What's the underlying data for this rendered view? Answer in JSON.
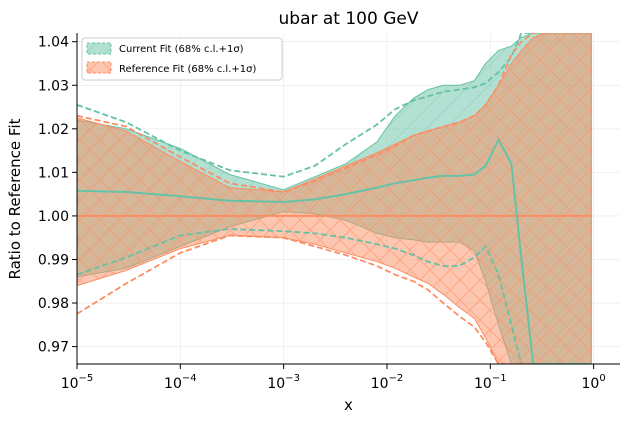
{
  "chart_data": {
    "type": "area",
    "title": "ubar at 100 GeV",
    "xlabel": "x",
    "ylabel": "Ratio to Reference Fit",
    "xscale": "log",
    "xlim": [
      1e-05,
      1.8
    ],
    "ylim": [
      0.966,
      1.042
    ],
    "x_ticks": [
      {
        "value": 1e-05,
        "base": "10",
        "exp": "−5"
      },
      {
        "value": 0.0001,
        "base": "10",
        "exp": "−4"
      },
      {
        "value": 0.001,
        "base": "10",
        "exp": "−3"
      },
      {
        "value": 0.01,
        "base": "10",
        "exp": "−2"
      },
      {
        "value": 0.1,
        "base": "10",
        "exp": "−1"
      },
      {
        "value": 1,
        "base": "10",
        "exp": "0"
      }
    ],
    "y_ticks": [
      0.97,
      0.98,
      0.99,
      1.0,
      1.01,
      1.02,
      1.03,
      1.04
    ],
    "y_tick_labels": [
      "0.97",
      "0.98",
      "0.99",
      "1.00",
      "1.01",
      "1.02",
      "1.03",
      "1.04"
    ],
    "grid": true,
    "legend_position": "top-left",
    "series": [
      {
        "name": "Current Fit (68% c.l.+1σ)",
        "color": "#66c2a5",
        "x": [
          1e-05,
          3e-05,
          0.0001,
          0.0003,
          0.001,
          0.002,
          0.004,
          0.008,
          0.012,
          0.018,
          0.025,
          0.035,
          0.05,
          0.07,
          0.09,
          0.12,
          0.16,
          0.2,
          0.26,
          0.35,
          0.5,
          0.7,
          0.85,
          0.95
        ],
        "band_upper": [
          1.022,
          1.02,
          1.0155,
          1.0095,
          1.006,
          1.009,
          1.012,
          1.017,
          1.023,
          1.027,
          1.029,
          1.03,
          1.03,
          1.031,
          1.035,
          1.038,
          1.039,
          1.041,
          1.042,
          1.042,
          1.042,
          1.042,
          1.042,
          1.042
        ],
        "band_lower": [
          0.986,
          0.988,
          0.993,
          0.9975,
          1.001,
          1.0005,
          0.999,
          0.996,
          0.995,
          0.9945,
          0.994,
          0.994,
          0.994,
          0.992,
          0.985,
          0.975,
          0.966,
          0.966,
          0.966,
          0.966,
          0.966,
          0.966,
          0.966,
          0.966
        ],
        "central": [
          1.0058,
          1.0055,
          1.0045,
          1.0035,
          1.0032,
          1.0038,
          1.005,
          1.0065,
          1.0075,
          1.0082,
          1.0088,
          1.0092,
          1.0092,
          1.0095,
          1.0115,
          1.0175,
          1.012,
          0.99,
          0.966,
          0.966,
          0.966,
          0.966,
          0.966,
          0.966
        ],
        "dashed_upper": [
          1.0255,
          1.0215,
          1.015,
          1.0105,
          1.009,
          1.0115,
          1.0165,
          1.021,
          1.0245,
          1.0265,
          1.0275,
          1.0285,
          1.029,
          1.0295,
          1.0305,
          1.033,
          1.0365,
          1.042,
          1.042,
          1.042,
          1.042,
          1.042,
          1.042,
          1.042
        ],
        "dashed_lower": [
          0.9865,
          0.9905,
          0.9955,
          0.997,
          0.9965,
          0.996,
          0.995,
          0.9935,
          0.9925,
          0.991,
          0.9895,
          0.9885,
          0.9885,
          0.9905,
          0.993,
          0.9865,
          0.975,
          0.966,
          0.966,
          0.966,
          0.966,
          0.966,
          0.966,
          0.966
        ]
      },
      {
        "name": "Reference Fit (68% c.l.+1σ)",
        "color": "#fc8d62",
        "x": [
          1e-05,
          3e-05,
          0.0001,
          0.0003,
          0.001,
          0.002,
          0.004,
          0.008,
          0.012,
          0.018,
          0.025,
          0.035,
          0.05,
          0.07,
          0.09,
          0.12,
          0.16,
          0.2,
          0.26,
          0.35,
          0.5,
          0.7,
          0.85,
          0.95
        ],
        "band_upper": [
          1.0225,
          1.0195,
          1.0125,
          1.0065,
          1.0055,
          1.0085,
          1.0115,
          1.0145,
          1.0165,
          1.0185,
          1.0195,
          1.0205,
          1.0215,
          1.023,
          1.0255,
          1.03,
          1.035,
          1.038,
          1.041,
          1.042,
          1.042,
          1.042,
          1.042,
          1.042
        ],
        "band_lower": [
          0.984,
          0.9875,
          0.9925,
          0.9955,
          0.995,
          0.9935,
          0.9915,
          0.9895,
          0.988,
          0.986,
          0.9845,
          0.982,
          0.979,
          0.9765,
          0.972,
          0.966,
          0.966,
          0.966,
          0.966,
          0.966,
          0.966,
          0.966,
          0.966,
          0.966
        ],
        "central": [
          1.0,
          1.0,
          1.0,
          1.0,
          1.0,
          1.0,
          1.0,
          1.0,
          1.0,
          1.0,
          1.0,
          1.0,
          1.0,
          1.0,
          1.0,
          1.0,
          1.0,
          1.0,
          1.0,
          1.0,
          1.0,
          1.0,
          1.0,
          1.0
        ],
        "dashed_upper": [
          1.023,
          1.0205,
          1.0135,
          1.0075,
          1.0055,
          1.008,
          1.011,
          1.014,
          1.016,
          1.0185,
          1.0195,
          1.0205,
          1.0215,
          1.023,
          1.0255,
          1.03,
          1.037,
          1.04,
          1.042,
          1.042,
          1.042,
          1.042,
          1.042,
          1.042
        ],
        "dashed_lower": [
          0.9775,
          0.9845,
          0.9915,
          0.9955,
          0.995,
          0.993,
          0.991,
          0.9885,
          0.9865,
          0.985,
          0.983,
          0.98,
          0.977,
          0.9745,
          0.971,
          0.966,
          0.966,
          0.966,
          0.966,
          0.966,
          0.966,
          0.966,
          0.966,
          0.966
        ]
      }
    ]
  }
}
